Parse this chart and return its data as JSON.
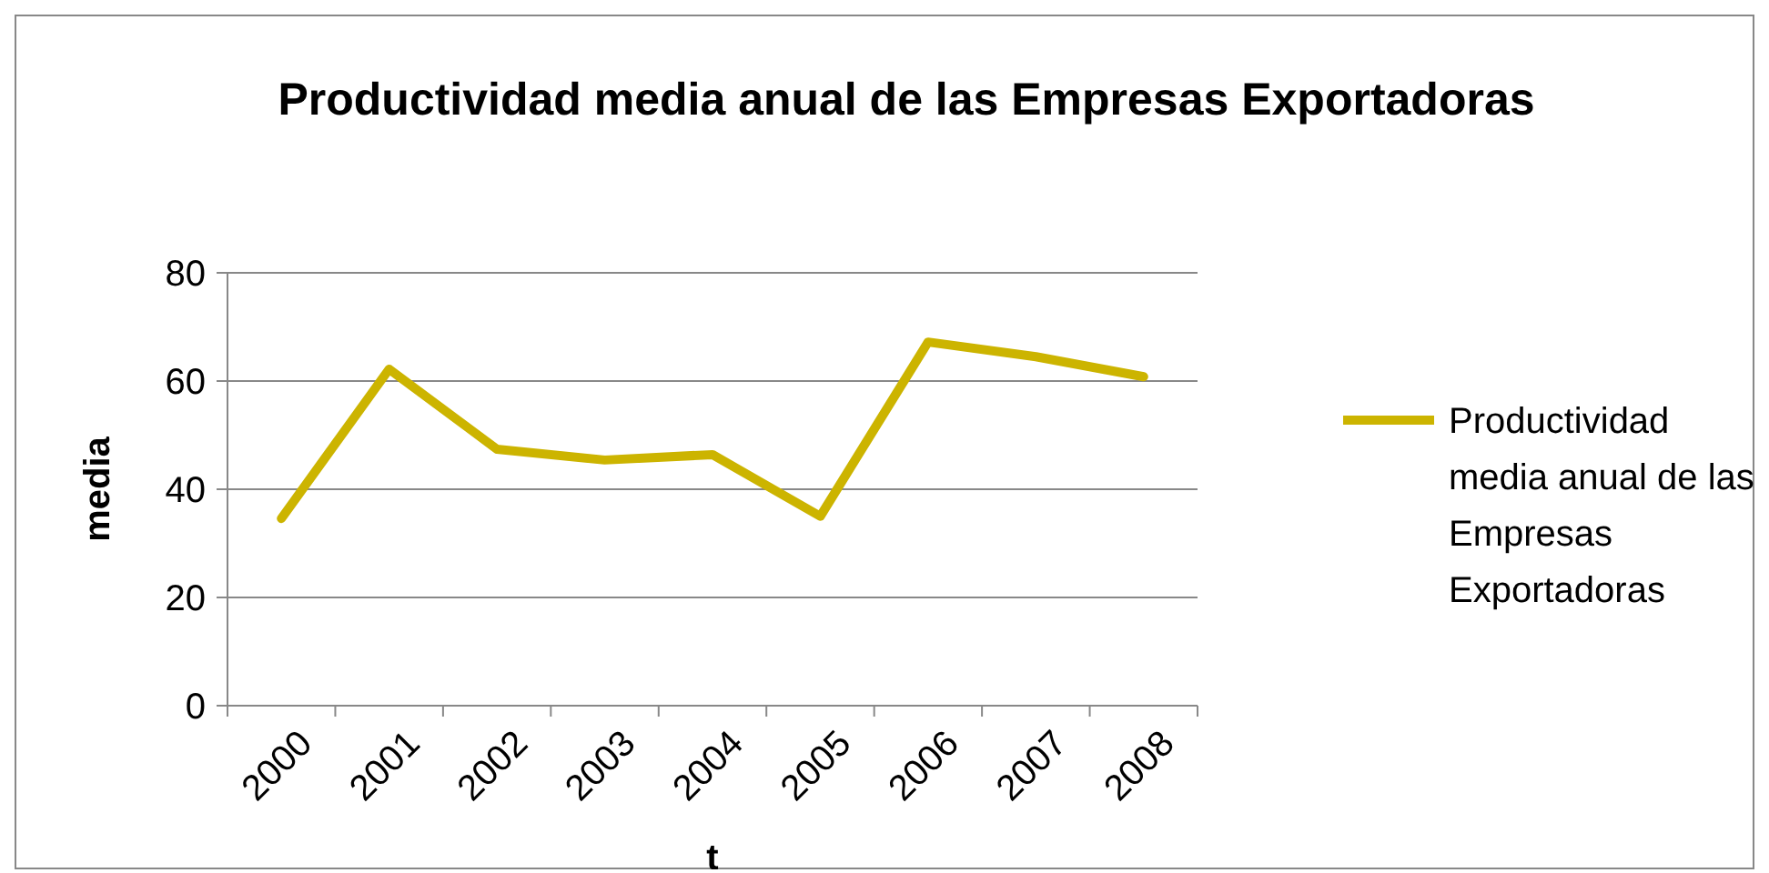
{
  "chart_data": {
    "type": "line",
    "title": "Productividad media anual de las Empresas Exportadoras",
    "xlabel": "t",
    "ylabel": "media",
    "categories": [
      "2000",
      "2001",
      "2002",
      "2003",
      "2004",
      "2005",
      "2006",
      "2007",
      "2008"
    ],
    "series": [
      {
        "name": "Productividad media anual de las Empresas Exportadoras",
        "color": "#ccb400",
        "values": [
          34.6,
          62.2,
          47.4,
          45.4,
          46.4,
          35,
          67.2,
          64.5,
          60.8
        ]
      }
    ],
    "ylim": [
      0,
      80
    ],
    "yticks": [
      0,
      20,
      40,
      60,
      80
    ],
    "grid": "y",
    "legend": "right",
    "marker": "none",
    "line_style": "solid"
  }
}
